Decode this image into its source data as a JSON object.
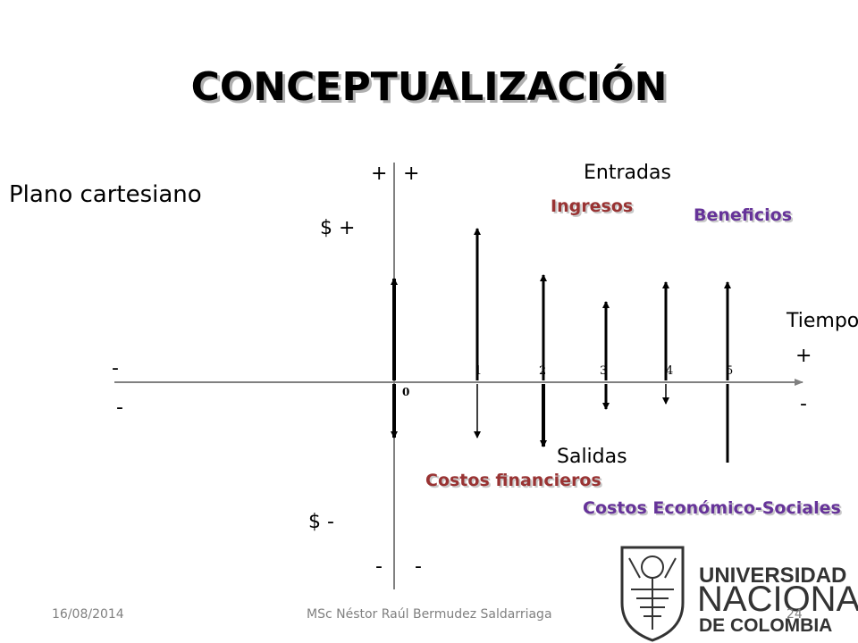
{
  "slide": {
    "title": "CONCEPTUALIZACIÓN",
    "subtitle": "Plano cartesiano"
  },
  "axis_signs": {
    "top_left": "+",
    "top_right": "+",
    "dollar_plus": "$ +",
    "dollar_minus": "$ -",
    "bottom_left": "-",
    "bottom_right": "-",
    "left_upper": "-",
    "left_lower": "-",
    "right_upper": "+",
    "right_lower": "-"
  },
  "labels": {
    "entradas": "Entradas",
    "salidas": "Salidas",
    "tiempo": "Tiempo",
    "ingresos": "Ingresos",
    "beneficios": "Beneficios",
    "costos_financieros": "Costos financieros",
    "costos_economico_sociales": "Costos Económico-Sociales"
  },
  "periods": [
    "0",
    "1",
    "2",
    "3",
    "4",
    "5"
  ],
  "colors": {
    "ingresos": "#993333",
    "beneficios": "#663399",
    "costos_financieros": "#993333",
    "costos_economico_sociales": "#663399",
    "axis": "#808080",
    "arrow": "#000000"
  },
  "logo": {
    "line1": "UNIVERSIDAD",
    "line2": "NACIONAL",
    "line3": "DE COLOMBIA"
  },
  "footer": {
    "date": "16/08/2014",
    "author": "MSc Néstor Raúl Bermudez Saldarriaga",
    "page": "24"
  }
}
